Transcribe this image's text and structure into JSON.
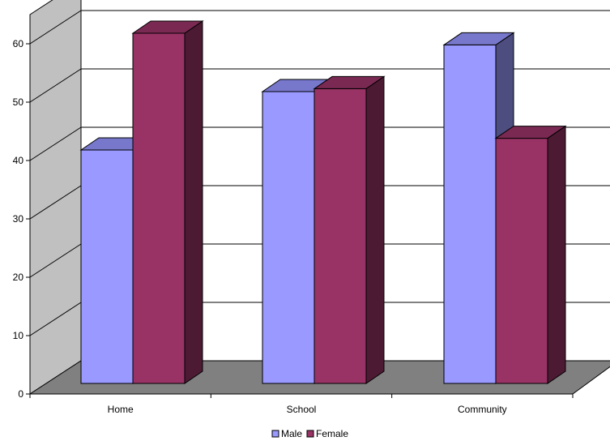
{
  "chart_data": {
    "type": "bar",
    "style": "3d-clustered-column",
    "categories": [
      "Home",
      "School",
      "Community"
    ],
    "series": [
      {
        "name": "Male",
        "values": [
          40,
          50,
          58
        ],
        "color": "#9999ff",
        "side_color": "#4d4d80",
        "top_color": "#7777cc"
      },
      {
        "name": "Female",
        "values": [
          60,
          50.5,
          42
        ],
        "color": "#993366",
        "side_color": "#4d1a33",
        "top_color": "#7a2952"
      }
    ],
    "y_ticks": [
      "0",
      "10",
      "20",
      "30",
      "40",
      "50",
      "60"
    ],
    "ylim": [
      0,
      60
    ],
    "grid": true,
    "legend": "bottom",
    "colors": {
      "floor": "#808080",
      "wall": "#c0c0c0",
      "gridline": "#000000"
    }
  }
}
